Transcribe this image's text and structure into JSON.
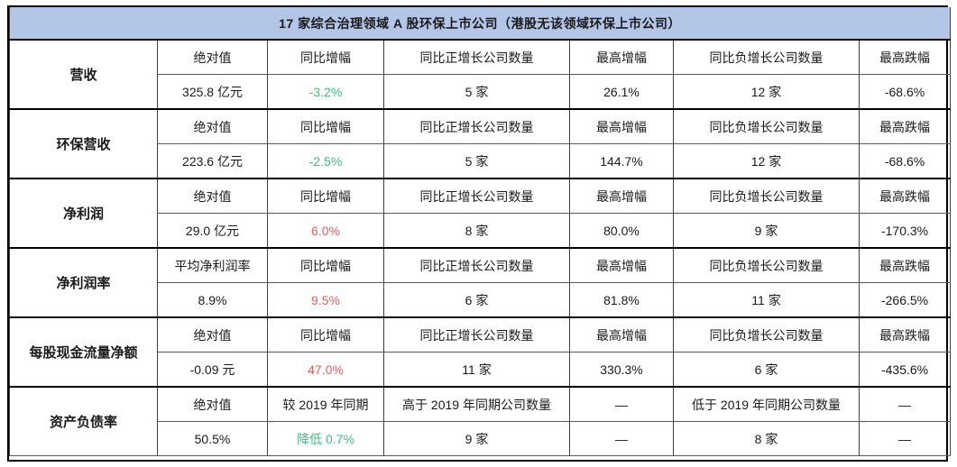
{
  "title": "17 家综合治理领域 A 股环保上市公司（港股无该领域环保上市公司）",
  "colors": {
    "title_bg": "#B4C6E7",
    "up_red": "#F25B5B",
    "down_green": "#3DBD7D",
    "border_dark": "#000000",
    "border_inner": "#404040"
  },
  "sections": [
    {
      "label": "营收",
      "headers": [
        "绝对值",
        "同比增幅",
        "同比正增长公司数量",
        "最高增幅",
        "同比负增长公司数量",
        "最高跌幅"
      ],
      "values": [
        "325.8 亿元",
        "-3.2%",
        "5 家",
        "26.1%",
        "12 家",
        "-68.6%"
      ],
      "change_color": "down_green"
    },
    {
      "label": "环保营收",
      "headers": [
        "绝对值",
        "同比增幅",
        "同比正增长公司数量",
        "最高增幅",
        "同比负增长公司数量",
        "最高跌幅"
      ],
      "values": [
        "223.6 亿元",
        "-2.5%",
        "5 家",
        "144.7%",
        "12 家",
        "-68.6%"
      ],
      "change_color": "down_green"
    },
    {
      "label": "净利润",
      "headers": [
        "绝对值",
        "同比增幅",
        "同比正增长公司数量",
        "最高增幅",
        "同比负增长公司数量",
        "最高跌幅"
      ],
      "values": [
        "29.0 亿元",
        "6.0%",
        "8 家",
        "80.0%",
        "9 家",
        "-170.3%"
      ],
      "change_color": "up_red"
    },
    {
      "label": "净利润率",
      "headers": [
        "平均净利润率",
        "同比增幅",
        "同比正增长公司数量",
        "最高增幅",
        "同比负增长公司数量",
        "最高跌幅"
      ],
      "values": [
        "8.9%",
        "9.5%",
        "6 家",
        "81.8%",
        "11 家",
        "-266.5%"
      ],
      "change_color": "up_red"
    },
    {
      "label": "每股现金流量净额",
      "headers": [
        "绝对值",
        "同比增幅",
        "同比正增长公司数量",
        "最高增幅",
        "同比负增长公司数量",
        "最高跌幅"
      ],
      "values": [
        "-0.09 元",
        "47.0%",
        "11 家",
        "330.3%",
        "6 家",
        "-435.6%"
      ],
      "change_color": "up_red"
    },
    {
      "label": "资产负债率",
      "headers": [
        "绝对值",
        "较 2019 年同期",
        "高于 2019 年同期公司数量",
        "—",
        "低于 2019 年同期公司数量",
        "—"
      ],
      "values": [
        "50.5%",
        "降低 0.7%",
        "9 家",
        "—",
        "8 家",
        "—"
      ],
      "change_color": "down_green"
    }
  ]
}
